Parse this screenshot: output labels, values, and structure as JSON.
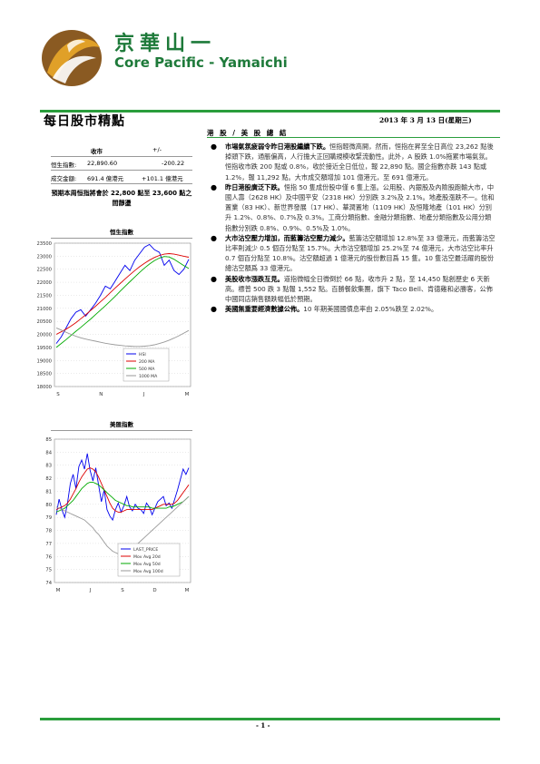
{
  "brand": {
    "name_zh": "京華山一",
    "name_en": "Core Pacific - Yamaichi"
  },
  "report": {
    "title": "每日股市精點",
    "date": "2013 年 3 月 13 日(星期三)",
    "page": "- 1 -"
  },
  "market": {
    "header_market": "收市",
    "header_change": "+/-",
    "rows": [
      {
        "label": "恒生指數:",
        "value": "22,890.60",
        "change": "-200.22"
      },
      {
        "label": "成交金額:",
        "value": "691.4 億港元",
        "change": "+101.1 億港元"
      }
    ],
    "note": "預期本周恒指將會於 22,800 點至 23,600 點之間靜盪"
  },
  "section_title": "港 股 / 美 股 總 結",
  "bullets": [
    {
      "lead": "市場氣氛疲弱令昨日港股繼續下跌。",
      "text": "恒指輕微高開，然而，恒指在昇至全日高位 23,262 點後掉頭下跌，通脹偏高，人行擔大正回購規模收緊流動性。此外，A 股跌 1.0%拖累市場氣氛。恒指收市跌 200 點或 0.8%，收於接近全日低位，報 22,890 點。國企指數亦跌 143 點或 1.2%，報 11,292 點。大市成交額增加 101 億港元，至 691 億港元。"
    },
    {
      "lead": "昨日港股廣泛下跌。",
      "text": "恒指 50 隻成份股中僅 6 隻上漲。公用股、內銀股及內險股跑輸大市，中國人壽（2628 HK）及中國平安（2318 HK）分別跌 3.2%及 2.1%。地產股漲跌不一。信和置業（83 HK）、新世界發展（17 HK）、華潤置地（1109 HK）及恒隆地產（101 HK）分別升 1.2%、0.8%、0.7%及 0.3%。工商分類指數、金融分類指數、地產分類指數及公用分類指數分別跌 0.8%、0.9%、0.5%及 1.0%。"
    },
    {
      "lead": "大市沽空壓力增加，而藍籌沽空壓力減少。",
      "text": "藍籌沽空額增加 12.8%至 33 億港元，而藍籌沽空比率則減少 0.5 個百分點至 15.7%。大市沽空額增加 25.2%至 74 億港元，大市沽空比率升 0.7 個百分點至 10.8%。沽空額超過 1 億港元的股份數目爲 15 隻。10 隻沽空最活躍的股份總沽空額爲 33 億港元。"
    },
    {
      "lead": "美股收市漲跌互見。",
      "text": "道指微幅全日微倒於 66 點，收市升 2 點，至 14,450 點創歷史 6 天新高。標普 500 跌 3 點報 1,552 點。百勝餐飲集團，旗下 Taco Bell、肯德雞和必勝客，公佈中國同店銷售額跌幅低於預期。"
    },
    {
      "lead": "美國無重要經濟數據公佈。",
      "text": "10 年期美國國債息率由 2.05%跌至 2.02%。"
    }
  ],
  "chart_data": [
    {
      "type": "line",
      "title": "恒生指數",
      "xticks": [
        "S",
        "N",
        "J",
        "M"
      ],
      "ylim": [
        18000,
        23500
      ],
      "yticks": [
        18000,
        18500,
        19000,
        19500,
        20000,
        20500,
        21000,
        21500,
        22000,
        22500,
        23000,
        23500
      ],
      "series": [
        {
          "name": "HSI",
          "color": "#0000ee",
          "values": [
            19650,
            19900,
            20250,
            20600,
            20850,
            20950,
            20700,
            20950,
            21200,
            21500,
            21850,
            21750,
            22050,
            22350,
            22650,
            22450,
            22850,
            23100,
            23350,
            23450,
            23250,
            23150,
            22650,
            22850,
            22450,
            22300,
            22500,
            22880
          ]
        },
        {
          "name": "200 MA",
          "color": "#dd0000",
          "values": [
            20000,
            20100,
            20200,
            20320,
            20450,
            20600,
            20750,
            20920,
            21080,
            21250,
            21420,
            21600,
            21780,
            21950,
            22120,
            22290,
            22450,
            22600,
            22730,
            22850,
            22950,
            23030,
            23080,
            23100,
            23080,
            23040,
            23000,
            22960
          ]
        },
        {
          "name": "500 MA",
          "color": "#00aa00",
          "values": [
            19500,
            19650,
            19800,
            19960,
            20120,
            20270,
            20430,
            20590,
            20760,
            20930,
            21100,
            21280,
            21460,
            21650,
            21840,
            22020,
            22200,
            22380,
            22550,
            22700,
            22830,
            22930,
            22990,
            22970,
            22880,
            22760,
            22640,
            22530
          ]
        },
        {
          "name": "1000 MA",
          "color": "#999999",
          "values": [
            20250,
            20170,
            20080,
            20000,
            19930,
            19870,
            19820,
            19780,
            19740,
            19700,
            19660,
            19630,
            19600,
            19580,
            19560,
            19550,
            19540,
            19540,
            19550,
            19570,
            19600,
            19650,
            19710,
            19780,
            19860,
            19950,
            20050,
            20150
          ]
        }
      ]
    },
    {
      "type": "line",
      "title": "美匯指數",
      "xticks": [
        "M",
        "J",
        "S",
        "D",
        "M"
      ],
      "ylim": [
        74,
        85
      ],
      "yticks": [
        74,
        75,
        76,
        77,
        78,
        79,
        80,
        81,
        82,
        83,
        84,
        85
      ],
      "series": [
        {
          "name": "LAST_PRICE",
          "color": "#0000ee",
          "values": [
            79.2,
            80.4,
            79.6,
            79.0,
            80.1,
            81.6,
            82.3,
            81.2,
            82.9,
            83.4,
            82.7,
            83.9,
            82.6,
            81.8,
            82.8,
            81.5,
            80.2,
            81.1,
            79.6,
            79.1,
            78.8,
            79.6,
            80.1,
            79.4,
            79.9,
            80.6,
            79.8,
            79.5,
            80.0,
            79.7,
            79.6,
            79.3,
            80.1,
            79.8,
            79.2,
            79.7,
            80.2,
            80.4,
            80.6,
            79.9,
            80.1,
            79.7,
            80.4,
            81.1,
            81.9,
            82.7,
            82.3,
            82.8
          ]
        },
        {
          "name": "Mov Avg 20d",
          "color": "#dd0000",
          "values": [
            79.6,
            79.7,
            79.8,
            79.9,
            80.1,
            80.4,
            80.8,
            81.2,
            81.7,
            82.1,
            82.4,
            82.7,
            82.8,
            82.7,
            82.5,
            82.1,
            81.6,
            81.1,
            80.6,
            80.1,
            79.7,
            79.5,
            79.4,
            79.4,
            79.5,
            79.6,
            79.6,
            79.6,
            79.6,
            79.6,
            79.6,
            79.6,
            79.6,
            79.6,
            79.6,
            79.7,
            79.8,
            79.9,
            80.0,
            80.0,
            80.0,
            80.0,
            80.1,
            80.3,
            80.6,
            80.9,
            81.2,
            81.5
          ]
        },
        {
          "name": "Mov Avg 50d",
          "color": "#00aa00",
          "values": [
            79.4,
            79.5,
            79.6,
            79.7,
            79.9,
            80.1,
            80.3,
            80.6,
            80.9,
            81.2,
            81.4,
            81.6,
            81.7,
            81.7,
            81.6,
            81.5,
            81.3,
            81.1,
            80.9,
            80.7,
            80.5,
            80.3,
            80.2,
            80.1,
            80.0,
            79.9,
            79.9,
            79.8,
            79.8,
            79.8,
            79.8,
            79.8,
            79.8,
            79.8,
            79.7,
            79.7,
            79.7,
            79.7,
            79.7,
            79.7,
            79.8,
            79.8,
            79.9,
            80.0,
            80.1,
            80.2,
            80.4,
            80.6
          ]
        },
        {
          "name": "Mov Avg 100d",
          "color": "#999999",
          "values": [
            79.8,
            79.7,
            79.6,
            79.5,
            79.4,
            79.3,
            79.2,
            79.1,
            79.0,
            78.9,
            78.8,
            78.6,
            78.4,
            78.2,
            77.9,
            77.7,
            77.4,
            77.1,
            76.8,
            76.6,
            76.4,
            76.3,
            76.2,
            76.2,
            76.3,
            76.4,
            76.5,
            76.6,
            76.8,
            77.0,
            77.2,
            77.4,
            77.6,
            77.8,
            78.0,
            78.2,
            78.4,
            78.6,
            78.8,
            79.0,
            79.2,
            79.4,
            79.6,
            79.8,
            80.0,
            80.2,
            80.4,
            80.6
          ]
        }
      ]
    }
  ],
  "colors": {
    "brand_green": "#1e7a3a",
    "rule_green": "#2a9d3c",
    "logo_brown": "#8a5a22",
    "logo_gold": "#e0a028"
  }
}
